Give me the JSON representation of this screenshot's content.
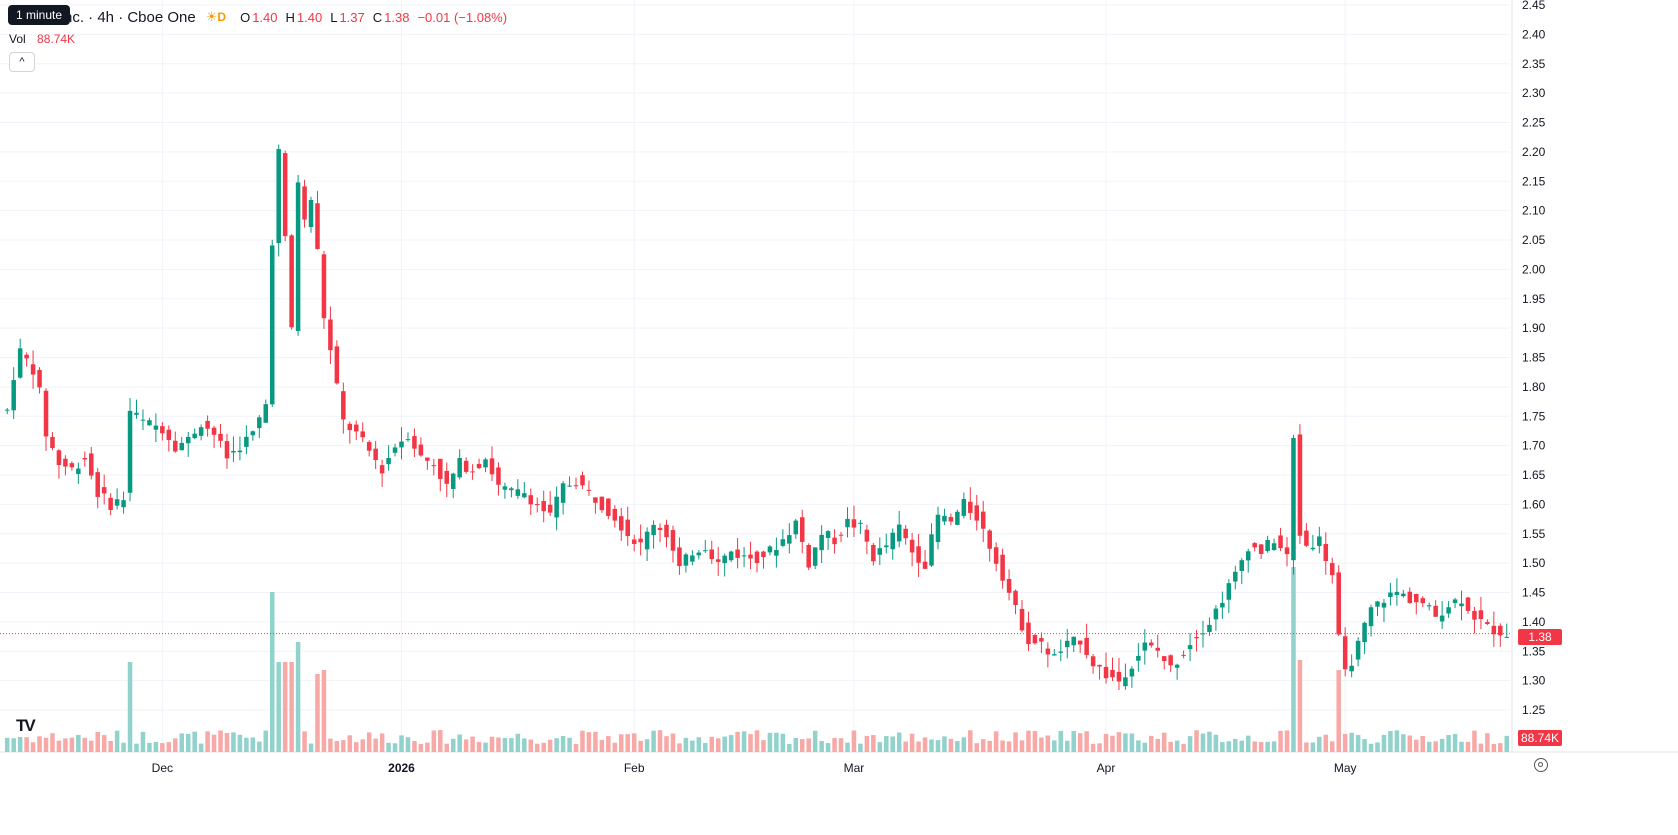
{
  "header": {
    "tooltip": "1 minute",
    "symbol_title": "nc. · 4h · Cboe One",
    "badge": "D",
    "ohlc": {
      "o_label": "O",
      "o_value": "1.40",
      "h_label": "H",
      "h_value": "1.40",
      "l_label": "L",
      "l_value": "1.37",
      "c_label": "C",
      "c_value": "1.38",
      "change": "−0.01 (−1.08%)"
    },
    "volume_label": "Vol",
    "volume_value": "88.74K"
  },
  "colors": {
    "up": "#089981",
    "down": "#f23645",
    "up_volume": "#92d2cc",
    "down_volume": "#f7a9a7",
    "grid": "#f0f3fa",
    "axis_text": "#131722",
    "accent": "#ff9800"
  },
  "price_axis": {
    "current_price_label": "1.38",
    "current_volume_label": "88.74K"
  },
  "icons": [
    "chevron-up-icon",
    "tradingview-logo-icon",
    "settings-icon",
    "sun-icon"
  ],
  "chart_data": {
    "type": "candlestick",
    "timeframe": "4h",
    "ylim": [
      1.2,
      2.45
    ],
    "y_ticks": [
      "2.45",
      "2.40",
      "2.35",
      "2.30",
      "2.25",
      "2.20",
      "2.15",
      "2.10",
      "2.05",
      "2.00",
      "1.95",
      "1.90",
      "1.85",
      "1.80",
      "1.75",
      "1.70",
      "1.65",
      "1.60",
      "1.55",
      "1.50",
      "1.45",
      "1.40",
      "1.35",
      "1.30",
      "1.25"
    ],
    "x_ticks": [
      {
        "label": "Dec",
        "bar": 24
      },
      {
        "label": "2026",
        "bar": 61
      },
      {
        "label": "Feb",
        "bar": 97
      },
      {
        "label": "Mar",
        "bar": 131
      },
      {
        "label": "Apr",
        "bar": 170
      },
      {
        "label": "May",
        "bar": 207
      }
    ],
    "bar_count": 233,
    "current_price": 1.38,
    "anchors": [
      [
        0,
        1.76
      ],
      [
        1,
        1.82
      ],
      [
        2,
        1.86
      ],
      [
        4,
        1.83
      ],
      [
        5,
        1.79
      ],
      [
        6,
        1.72
      ],
      [
        8,
        1.67
      ],
      [
        10,
        1.66
      ],
      [
        12,
        1.68
      ],
      [
        14,
        1.62
      ],
      [
        16,
        1.6
      ],
      [
        18,
        1.61
      ],
      [
        19,
        1.76
      ],
      [
        21,
        1.74
      ],
      [
        24,
        1.73
      ],
      [
        26,
        1.7
      ],
      [
        28,
        1.71
      ],
      [
        30,
        1.74
      ],
      [
        32,
        1.72
      ],
      [
        34,
        1.68
      ],
      [
        36,
        1.7
      ],
      [
        38,
        1.72
      ],
      [
        40,
        1.77
      ],
      [
        41,
        2.05
      ],
      [
        42,
        2.2
      ],
      [
        43,
        2.05
      ],
      [
        44,
        1.9
      ],
      [
        45,
        2.15
      ],
      [
        46,
        2.08
      ],
      [
        47,
        2.12
      ],
      [
        48,
        2.03
      ],
      [
        49,
        1.92
      ],
      [
        51,
        1.8
      ],
      [
        52,
        1.74
      ],
      [
        54,
        1.72
      ],
      [
        56,
        1.69
      ],
      [
        58,
        1.66
      ],
      [
        60,
        1.7
      ],
      [
        62,
        1.72
      ],
      [
        64,
        1.68
      ],
      [
        66,
        1.67
      ],
      [
        68,
        1.63
      ],
      [
        70,
        1.67
      ],
      [
        72,
        1.66
      ],
      [
        74,
        1.68
      ],
      [
        76,
        1.63
      ],
      [
        78,
        1.62
      ],
      [
        80,
        1.62
      ],
      [
        82,
        1.6
      ],
      [
        84,
        1.58
      ],
      [
        86,
        1.63
      ],
      [
        88,
        1.64
      ],
      [
        90,
        1.62
      ],
      [
        92,
        1.6
      ],
      [
        94,
        1.58
      ],
      [
        96,
        1.55
      ],
      [
        98,
        1.53
      ],
      [
        100,
        1.57
      ],
      [
        102,
        1.55
      ],
      [
        104,
        1.49
      ],
      [
        106,
        1.52
      ],
      [
        108,
        1.53
      ],
      [
        110,
        1.5
      ],
      [
        112,
        1.52
      ],
      [
        114,
        1.51
      ],
      [
        116,
        1.51
      ],
      [
        118,
        1.52
      ],
      [
        120,
        1.54
      ],
      [
        122,
        1.57
      ],
      [
        124,
        1.5
      ],
      [
        126,
        1.55
      ],
      [
        128,
        1.54
      ],
      [
        130,
        1.57
      ],
      [
        132,
        1.56
      ],
      [
        134,
        1.51
      ],
      [
        136,
        1.53
      ],
      [
        138,
        1.56
      ],
      [
        140,
        1.52
      ],
      [
        142,
        1.5
      ],
      [
        144,
        1.58
      ],
      [
        146,
        1.57
      ],
      [
        148,
        1.6
      ],
      [
        150,
        1.58
      ],
      [
        152,
        1.53
      ],
      [
        154,
        1.48
      ],
      [
        156,
        1.42
      ],
      [
        158,
        1.37
      ],
      [
        160,
        1.36
      ],
      [
        162,
        1.34
      ],
      [
        164,
        1.36
      ],
      [
        166,
        1.37
      ],
      [
        168,
        1.33
      ],
      [
        170,
        1.31
      ],
      [
        172,
        1.3
      ],
      [
        174,
        1.33
      ],
      [
        176,
        1.36
      ],
      [
        178,
        1.35
      ],
      [
        180,
        1.32
      ],
      [
        182,
        1.35
      ],
      [
        184,
        1.38
      ],
      [
        186,
        1.4
      ],
      [
        188,
        1.44
      ],
      [
        190,
        1.48
      ],
      [
        192,
        1.53
      ],
      [
        194,
        1.52
      ],
      [
        196,
        1.54
      ],
      [
        198,
        1.51
      ],
      [
        199,
        1.71
      ],
      [
        200,
        1.55
      ],
      [
        201,
        1.53
      ],
      [
        203,
        1.54
      ],
      [
        205,
        1.48
      ],
      [
        206,
        1.37
      ],
      [
        207,
        1.31
      ],
      [
        209,
        1.36
      ],
      [
        211,
        1.42
      ],
      [
        213,
        1.44
      ],
      [
        215,
        1.45
      ],
      [
        217,
        1.44
      ],
      [
        219,
        1.43
      ],
      [
        221,
        1.41
      ],
      [
        223,
        1.43
      ],
      [
        225,
        1.44
      ],
      [
        227,
        1.41
      ],
      [
        229,
        1.39
      ],
      [
        232,
        1.38
      ]
    ],
    "volume_note": "Volume histogram pane at bottom; spike bars near first surge (Dec), mid-Mar drop and mid-Apr spike"
  }
}
